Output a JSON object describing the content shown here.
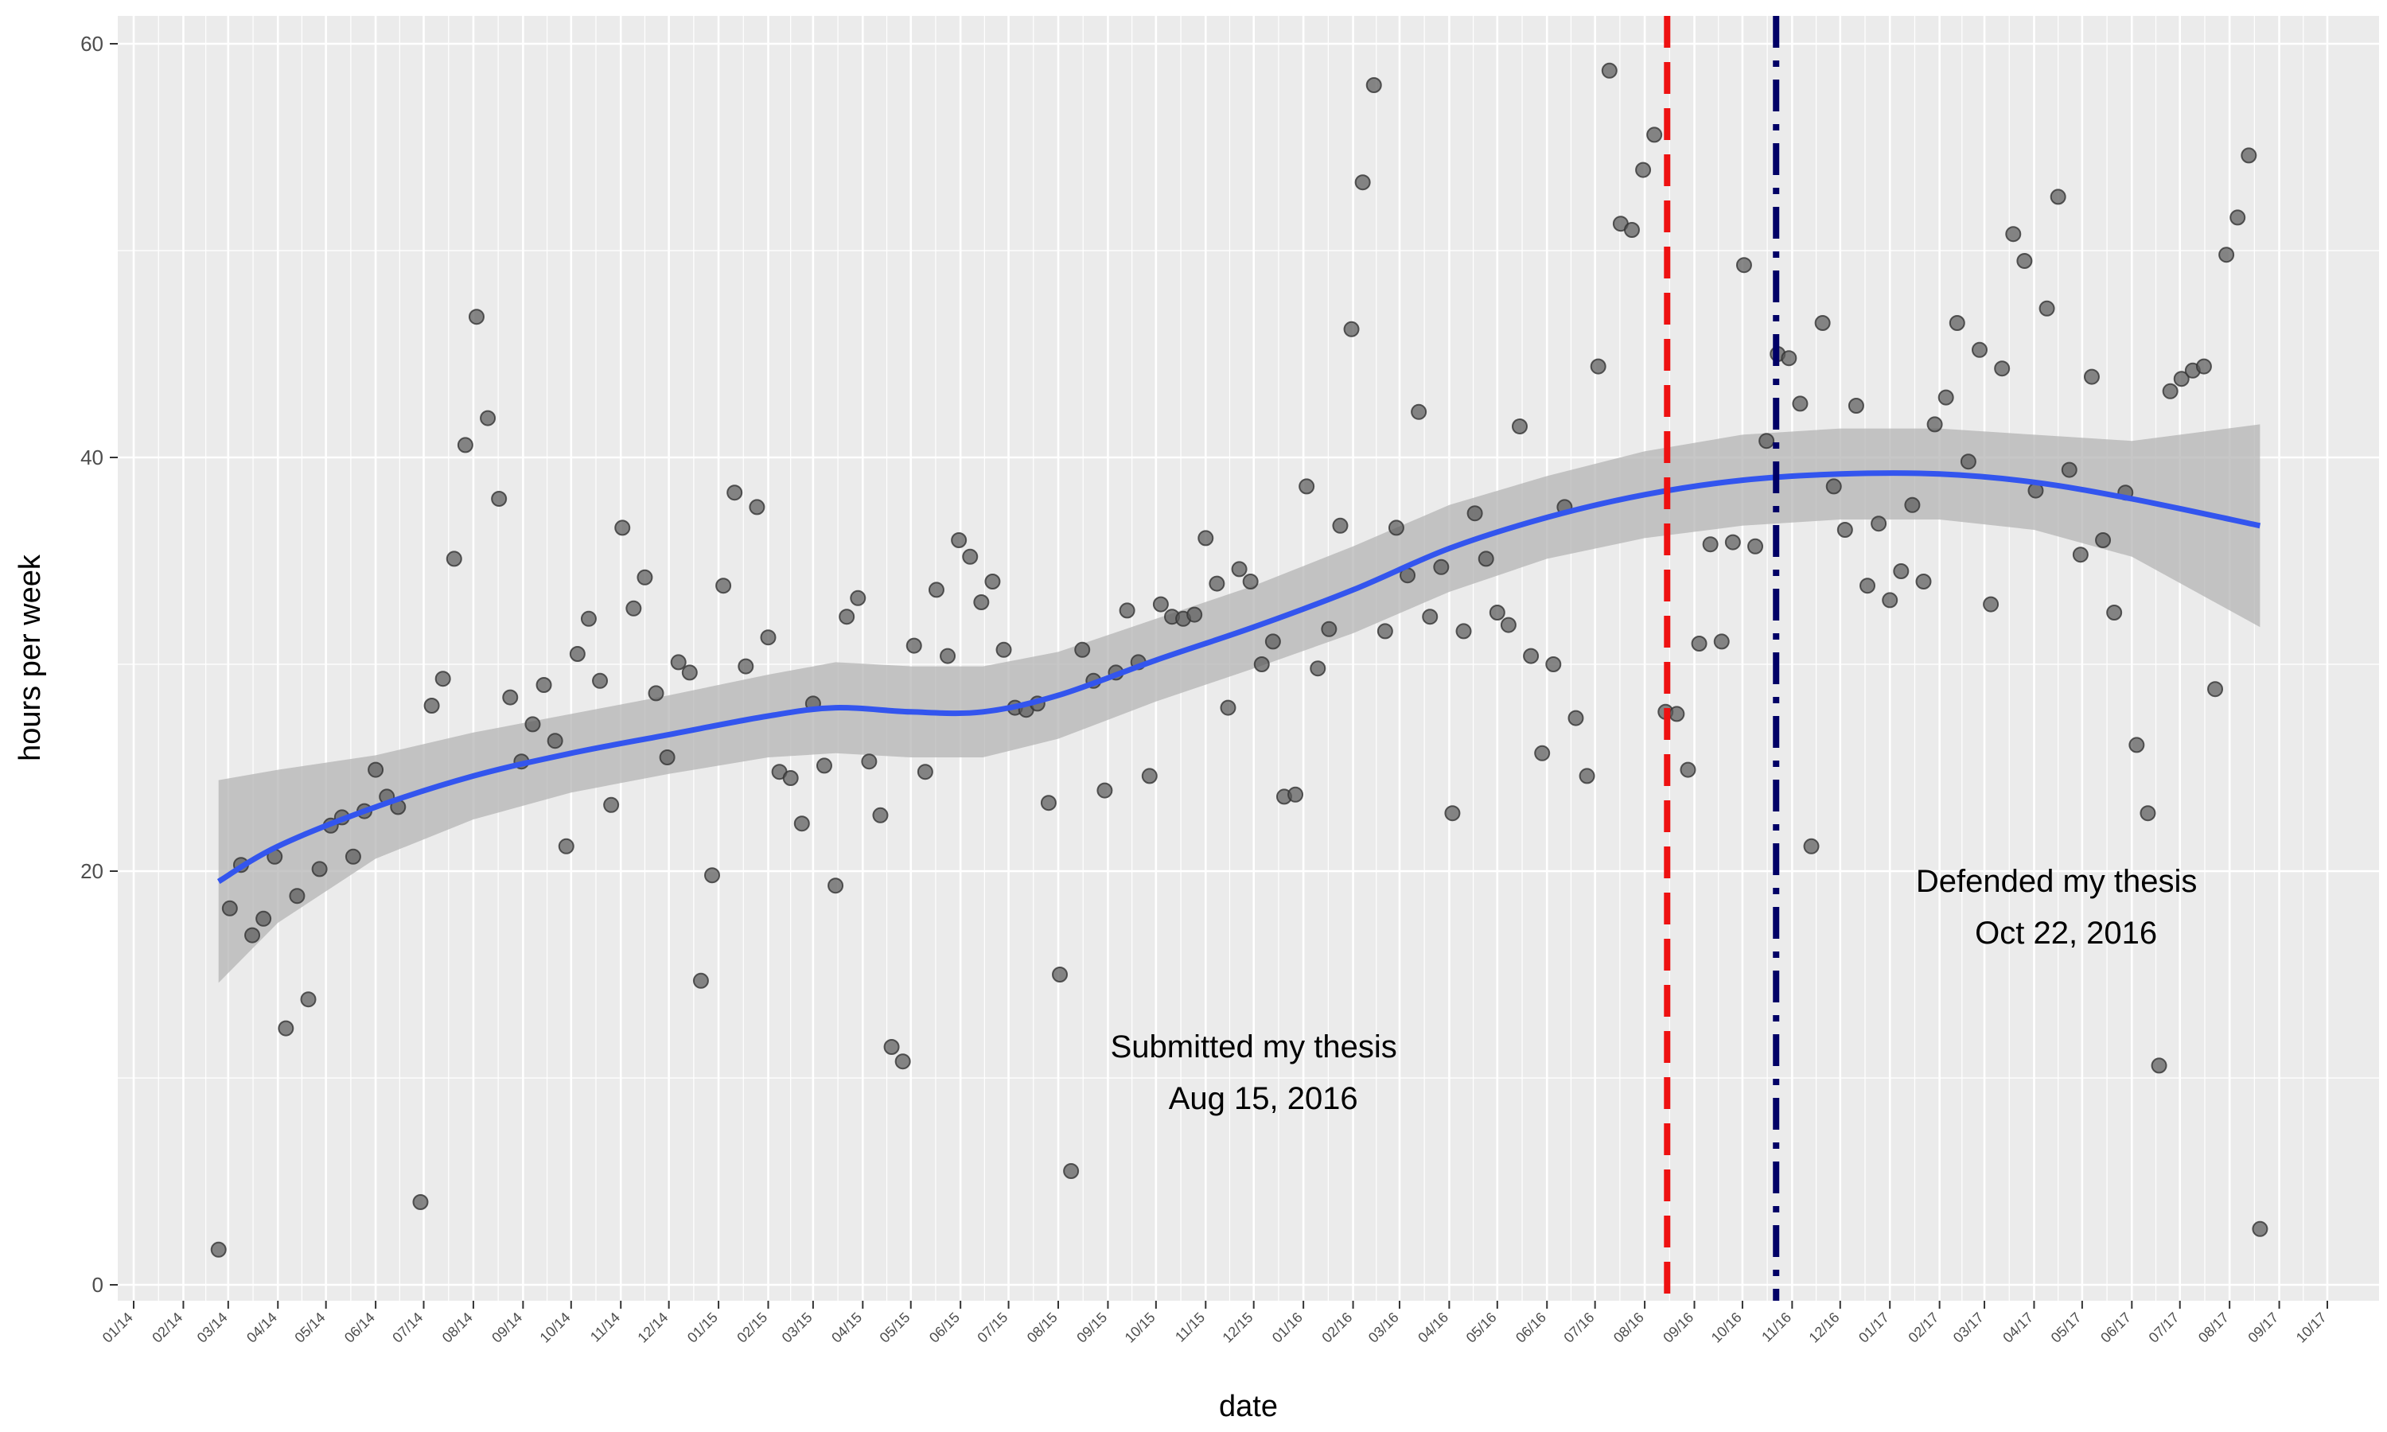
{
  "chart_data": {
    "type": "scatter",
    "title": "",
    "xlabel": "date",
    "ylabel": "hours per week",
    "x_axis": {
      "type": "date",
      "range": [
        "2014-01-01",
        "2017-10-01"
      ],
      "tick_labels": [
        "01/14",
        "02/14",
        "03/14",
        "04/14",
        "05/14",
        "06/14",
        "07/14",
        "08/14",
        "09/14",
        "10/14",
        "11/14",
        "12/14",
        "01/15",
        "02/15",
        "03/15",
        "04/15",
        "05/15",
        "06/15",
        "07/15",
        "08/15",
        "09/15",
        "10/15",
        "11/15",
        "12/15",
        "01/16",
        "02/16",
        "03/16",
        "04/16",
        "05/16",
        "06/16",
        "07/16",
        "08/16",
        "09/16",
        "10/16",
        "11/16",
        "12/16",
        "01/17",
        "02/17",
        "03/17",
        "04/17",
        "05/17",
        "06/17",
        "07/17",
        "08/17",
        "09/17",
        "10/17"
      ]
    },
    "y_axis": {
      "range": [
        0,
        60
      ],
      "ticks": [
        0,
        20,
        40,
        60
      ]
    },
    "grid": true,
    "legend": "none",
    "colors": {
      "panel": "#ebebeb",
      "grid": "#ffffff",
      "points": "#5a5a5a",
      "smooth": "#3355ee",
      "band": "#b4b4b4",
      "submitted_line": "#ee1111",
      "defended_line": "#000066"
    },
    "points": [
      {
        "x": "2014-02-23",
        "y": 1.7
      },
      {
        "x": "2014-03-02",
        "y": 18.2
      },
      {
        "x": "2014-03-09",
        "y": 20.3
      },
      {
        "x": "2014-03-16",
        "y": 16.9
      },
      {
        "x": "2014-03-23",
        "y": 17.7
      },
      {
        "x": "2014-03-30",
        "y": 20.7
      },
      {
        "x": "2014-04-06",
        "y": 12.4
      },
      {
        "x": "2014-04-13",
        "y": 18.8
      },
      {
        "x": "2014-04-20",
        "y": 13.8
      },
      {
        "x": "2014-04-27",
        "y": 20.1
      },
      {
        "x": "2014-05-04",
        "y": 22.2
      },
      {
        "x": "2014-05-11",
        "y": 22.6
      },
      {
        "x": "2014-05-18",
        "y": 20.7
      },
      {
        "x": "2014-05-25",
        "y": 22.9
      },
      {
        "x": "2014-06-01",
        "y": 24.9
      },
      {
        "x": "2014-06-08",
        "y": 23.6
      },
      {
        "x": "2014-06-15",
        "y": 23.1
      },
      {
        "x": "2014-06-29",
        "y": 4.0
      },
      {
        "x": "2014-07-06",
        "y": 28.0
      },
      {
        "x": "2014-07-13",
        "y": 29.3
      },
      {
        "x": "2014-07-20",
        "y": 35.1
      },
      {
        "x": "2014-07-27",
        "y": 40.6
      },
      {
        "x": "2014-08-03",
        "y": 46.8
      },
      {
        "x": "2014-08-10",
        "y": 41.9
      },
      {
        "x": "2014-08-17",
        "y": 38.0
      },
      {
        "x": "2014-08-24",
        "y": 28.4
      },
      {
        "x": "2014-08-31",
        "y": 25.3
      },
      {
        "x": "2014-09-07",
        "y": 27.1
      },
      {
        "x": "2014-09-14",
        "y": 29.0
      },
      {
        "x": "2014-09-21",
        "y": 26.3
      },
      {
        "x": "2014-09-28",
        "y": 21.2
      },
      {
        "x": "2014-10-05",
        "y": 30.5
      },
      {
        "x": "2014-10-12",
        "y": 32.2
      },
      {
        "x": "2014-10-19",
        "y": 29.2
      },
      {
        "x": "2014-10-26",
        "y": 23.2
      },
      {
        "x": "2014-11-02",
        "y": 36.6
      },
      {
        "x": "2014-11-09",
        "y": 32.7
      },
      {
        "x": "2014-11-16",
        "y": 34.2
      },
      {
        "x": "2014-11-23",
        "y": 28.6
      },
      {
        "x": "2014-11-30",
        "y": 25.5
      },
      {
        "x": "2014-12-07",
        "y": 30.1
      },
      {
        "x": "2014-12-14",
        "y": 29.6
      },
      {
        "x": "2014-12-21",
        "y": 14.7
      },
      {
        "x": "2014-12-28",
        "y": 19.8
      },
      {
        "x": "2015-01-04",
        "y": 33.8
      },
      {
        "x": "2015-01-11",
        "y": 38.3
      },
      {
        "x": "2015-01-18",
        "y": 29.9
      },
      {
        "x": "2015-01-25",
        "y": 37.6
      },
      {
        "x": "2015-02-01",
        "y": 31.3
      },
      {
        "x": "2015-02-08",
        "y": 24.8
      },
      {
        "x": "2015-02-15",
        "y": 24.5
      },
      {
        "x": "2015-02-22",
        "y": 22.3
      },
      {
        "x": "2015-03-01",
        "y": 28.1
      },
      {
        "x": "2015-03-08",
        "y": 25.1
      },
      {
        "x": "2015-03-15",
        "y": 19.3
      },
      {
        "x": "2015-03-22",
        "y": 32.3
      },
      {
        "x": "2015-03-29",
        "y": 33.2
      },
      {
        "x": "2015-04-05",
        "y": 25.3
      },
      {
        "x": "2015-04-12",
        "y": 22.7
      },
      {
        "x": "2015-04-19",
        "y": 11.5
      },
      {
        "x": "2015-04-26",
        "y": 10.8
      },
      {
        "x": "2015-05-03",
        "y": 30.9
      },
      {
        "x": "2015-05-10",
        "y": 24.8
      },
      {
        "x": "2015-05-17",
        "y": 33.6
      },
      {
        "x": "2015-05-24",
        "y": 30.4
      },
      {
        "x": "2015-05-31",
        "y": 36.0
      },
      {
        "x": "2015-06-07",
        "y": 35.2
      },
      {
        "x": "2015-06-14",
        "y": 33.0
      },
      {
        "x": "2015-06-21",
        "y": 34.0
      },
      {
        "x": "2015-06-28",
        "y": 30.7
      },
      {
        "x": "2015-07-05",
        "y": 27.9
      },
      {
        "x": "2015-07-12",
        "y": 27.8
      },
      {
        "x": "2015-07-19",
        "y": 28.1
      },
      {
        "x": "2015-07-26",
        "y": 23.3
      },
      {
        "x": "2015-08-02",
        "y": 15.0
      },
      {
        "x": "2015-08-09",
        "y": 5.5
      },
      {
        "x": "2015-08-16",
        "y": 30.7
      },
      {
        "x": "2015-08-23",
        "y": 29.2
      },
      {
        "x": "2015-08-30",
        "y": 23.9
      },
      {
        "x": "2015-09-06",
        "y": 29.6
      },
      {
        "x": "2015-09-13",
        "y": 32.6
      },
      {
        "x": "2015-09-20",
        "y": 30.1
      },
      {
        "x": "2015-09-27",
        "y": 24.6
      },
      {
        "x": "2015-10-04",
        "y": 32.9
      },
      {
        "x": "2015-10-11",
        "y": 32.3
      },
      {
        "x": "2015-10-18",
        "y": 32.2
      },
      {
        "x": "2015-10-25",
        "y": 32.4
      },
      {
        "x": "2015-11-01",
        "y": 36.1
      },
      {
        "x": "2015-11-08",
        "y": 33.9
      },
      {
        "x": "2015-11-15",
        "y": 27.9
      },
      {
        "x": "2015-11-22",
        "y": 34.6
      },
      {
        "x": "2015-11-29",
        "y": 34.0
      },
      {
        "x": "2015-12-06",
        "y": 30.0
      },
      {
        "x": "2015-12-13",
        "y": 31.1
      },
      {
        "x": "2015-12-20",
        "y": 23.6
      },
      {
        "x": "2015-12-27",
        "y": 23.7
      },
      {
        "x": "2016-01-03",
        "y": 38.6
      },
      {
        "x": "2016-01-10",
        "y": 29.8
      },
      {
        "x": "2016-01-17",
        "y": 31.7
      },
      {
        "x": "2016-01-24",
        "y": 36.7
      },
      {
        "x": "2016-01-31",
        "y": 46.2
      },
      {
        "x": "2016-02-07",
        "y": 53.3
      },
      {
        "x": "2016-02-14",
        "y": 58.0
      },
      {
        "x": "2016-02-21",
        "y": 31.6
      },
      {
        "x": "2016-02-28",
        "y": 36.6
      },
      {
        "x": "2016-03-06",
        "y": 34.3
      },
      {
        "x": "2016-03-13",
        "y": 42.2
      },
      {
        "x": "2016-03-20",
        "y": 32.3
      },
      {
        "x": "2016-03-27",
        "y": 34.7
      },
      {
        "x": "2016-04-03",
        "y": 22.8
      },
      {
        "x": "2016-04-10",
        "y": 31.6
      },
      {
        "x": "2016-04-17",
        "y": 37.3
      },
      {
        "x": "2016-04-24",
        "y": 35.1
      },
      {
        "x": "2016-05-01",
        "y": 32.5
      },
      {
        "x": "2016-05-08",
        "y": 31.9
      },
      {
        "x": "2016-05-15",
        "y": 41.5
      },
      {
        "x": "2016-05-22",
        "y": 30.4
      },
      {
        "x": "2016-05-29",
        "y": 25.7
      },
      {
        "x": "2016-06-05",
        "y": 30.0
      },
      {
        "x": "2016-06-12",
        "y": 37.6
      },
      {
        "x": "2016-06-19",
        "y": 27.4
      },
      {
        "x": "2016-06-26",
        "y": 24.6
      },
      {
        "x": "2016-07-03",
        "y": 44.4
      },
      {
        "x": "2016-07-10",
        "y": 58.7
      },
      {
        "x": "2016-07-17",
        "y": 51.3
      },
      {
        "x": "2016-07-24",
        "y": 51.0
      },
      {
        "x": "2016-07-31",
        "y": 53.9
      },
      {
        "x": "2016-08-07",
        "y": 55.6
      },
      {
        "x": "2016-08-14",
        "y": 27.7
      },
      {
        "x": "2016-08-21",
        "y": 27.6
      },
      {
        "x": "2016-08-28",
        "y": 24.9
      },
      {
        "x": "2016-09-04",
        "y": 31.0
      },
      {
        "x": "2016-09-11",
        "y": 35.8
      },
      {
        "x": "2016-09-18",
        "y": 31.1
      },
      {
        "x": "2016-09-25",
        "y": 35.9
      },
      {
        "x": "2016-10-02",
        "y": 49.3
      },
      {
        "x": "2016-10-09",
        "y": 35.7
      },
      {
        "x": "2016-10-16",
        "y": 40.8
      },
      {
        "x": "2016-10-23",
        "y": 45.0
      },
      {
        "x": "2016-10-30",
        "y": 44.8
      },
      {
        "x": "2016-11-06",
        "y": 42.6
      },
      {
        "x": "2016-11-13",
        "y": 21.2
      },
      {
        "x": "2016-11-20",
        "y": 46.5
      },
      {
        "x": "2016-11-27",
        "y": 38.6
      },
      {
        "x": "2016-12-04",
        "y": 36.5
      },
      {
        "x": "2016-12-11",
        "y": 42.5
      },
      {
        "x": "2016-12-18",
        "y": 33.8
      },
      {
        "x": "2016-12-25",
        "y": 36.8
      },
      {
        "x": "2017-01-01",
        "y": 33.1
      },
      {
        "x": "2017-01-08",
        "y": 34.5
      },
      {
        "x": "2017-01-15",
        "y": 37.7
      },
      {
        "x": "2017-01-22",
        "y": 34.0
      },
      {
        "x": "2017-01-29",
        "y": 41.6
      },
      {
        "x": "2017-02-05",
        "y": 42.9
      },
      {
        "x": "2017-02-12",
        "y": 46.5
      },
      {
        "x": "2017-02-19",
        "y": 39.8
      },
      {
        "x": "2017-02-26",
        "y": 45.2
      },
      {
        "x": "2017-03-05",
        "y": 32.9
      },
      {
        "x": "2017-03-12",
        "y": 44.3
      },
      {
        "x": "2017-03-19",
        "y": 50.8
      },
      {
        "x": "2017-03-26",
        "y": 49.5
      },
      {
        "x": "2017-04-02",
        "y": 38.4
      },
      {
        "x": "2017-04-09",
        "y": 47.2
      },
      {
        "x": "2017-04-16",
        "y": 52.6
      },
      {
        "x": "2017-04-23",
        "y": 39.4
      },
      {
        "x": "2017-04-30",
        "y": 35.3
      },
      {
        "x": "2017-05-07",
        "y": 43.9
      },
      {
        "x": "2017-05-14",
        "y": 36.0
      },
      {
        "x": "2017-05-21",
        "y": 32.5
      },
      {
        "x": "2017-05-28",
        "y": 38.3
      },
      {
        "x": "2017-06-04",
        "y": 26.1
      },
      {
        "x": "2017-06-11",
        "y": 22.8
      },
      {
        "x": "2017-06-18",
        "y": 10.6
      },
      {
        "x": "2017-06-25",
        "y": 43.2
      },
      {
        "x": "2017-07-02",
        "y": 43.8
      },
      {
        "x": "2017-07-09",
        "y": 44.2
      },
      {
        "x": "2017-07-16",
        "y": 44.4
      },
      {
        "x": "2017-07-23",
        "y": 28.8
      },
      {
        "x": "2017-07-30",
        "y": 49.8
      },
      {
        "x": "2017-08-06",
        "y": 51.6
      },
      {
        "x": "2017-08-13",
        "y": 54.6
      },
      {
        "x": "2017-08-20",
        "y": 2.7
      }
    ],
    "smooth": [
      {
        "x": "2014-02-23",
        "y": 19.5,
        "lo": 14.6,
        "hi": 24.4
      },
      {
        "x": "2014-04-01",
        "y": 21.2,
        "lo": 17.5,
        "hi": 24.9
      },
      {
        "x": "2014-06-01",
        "y": 23.1,
        "lo": 20.6,
        "hi": 25.6
      },
      {
        "x": "2014-08-01",
        "y": 24.6,
        "lo": 22.5,
        "hi": 26.7
      },
      {
        "x": "2014-10-01",
        "y": 25.7,
        "lo": 23.8,
        "hi": 27.6
      },
      {
        "x": "2014-12-01",
        "y": 26.6,
        "lo": 24.7,
        "hi": 28.5
      },
      {
        "x": "2015-02-01",
        "y": 27.5,
        "lo": 25.5,
        "hi": 29.5
      },
      {
        "x": "2015-03-15",
        "y": 27.9,
        "lo": 25.7,
        "hi": 30.1
      },
      {
        "x": "2015-05-01",
        "y": 27.7,
        "lo": 25.5,
        "hi": 29.9
      },
      {
        "x": "2015-06-15",
        "y": 27.7,
        "lo": 25.5,
        "hi": 29.9
      },
      {
        "x": "2015-08-01",
        "y": 28.5,
        "lo": 26.4,
        "hi": 30.6
      },
      {
        "x": "2015-10-01",
        "y": 30.2,
        "lo": 28.2,
        "hi": 32.2
      },
      {
        "x": "2015-12-01",
        "y": 31.8,
        "lo": 29.8,
        "hi": 33.8
      },
      {
        "x": "2016-02-01",
        "y": 33.6,
        "lo": 31.5,
        "hi": 35.7
      },
      {
        "x": "2016-04-01",
        "y": 35.6,
        "lo": 33.5,
        "hi": 37.7
      },
      {
        "x": "2016-06-01",
        "y": 37.1,
        "lo": 35.1,
        "hi": 39.1
      },
      {
        "x": "2016-08-01",
        "y": 38.2,
        "lo": 36.1,
        "hi": 40.3
      },
      {
        "x": "2016-10-01",
        "y": 38.9,
        "lo": 36.7,
        "hi": 41.1
      },
      {
        "x": "2016-12-01",
        "y": 39.2,
        "lo": 37.0,
        "hi": 41.4
      },
      {
        "x": "2017-02-01",
        "y": 39.2,
        "lo": 37.0,
        "hi": 41.4
      },
      {
        "x": "2017-04-01",
        "y": 38.8,
        "lo": 36.5,
        "hi": 41.1
      },
      {
        "x": "2017-06-01",
        "y": 38.0,
        "lo": 35.2,
        "hi": 40.8
      },
      {
        "x": "2017-08-20",
        "y": 36.7,
        "lo": 31.8,
        "hi": 41.6
      }
    ],
    "vlines": [
      {
        "x": "2016-08-15",
        "style": "dashed",
        "color": "#ee1111"
      },
      {
        "x": "2016-10-22",
        "style": "dotdash",
        "color": "#000066"
      }
    ],
    "annotations": [
      {
        "line1": "Submitted my thesis",
        "line2": "Aug 15, 2016",
        "x": "2015-12-01",
        "y": 11.0,
        "y2": 8.5
      },
      {
        "line1": "Defended my thesis",
        "line2": "Oct 22, 2016",
        "x": "2017-04-15",
        "y": 19.0,
        "y2": 16.5
      }
    ]
  }
}
